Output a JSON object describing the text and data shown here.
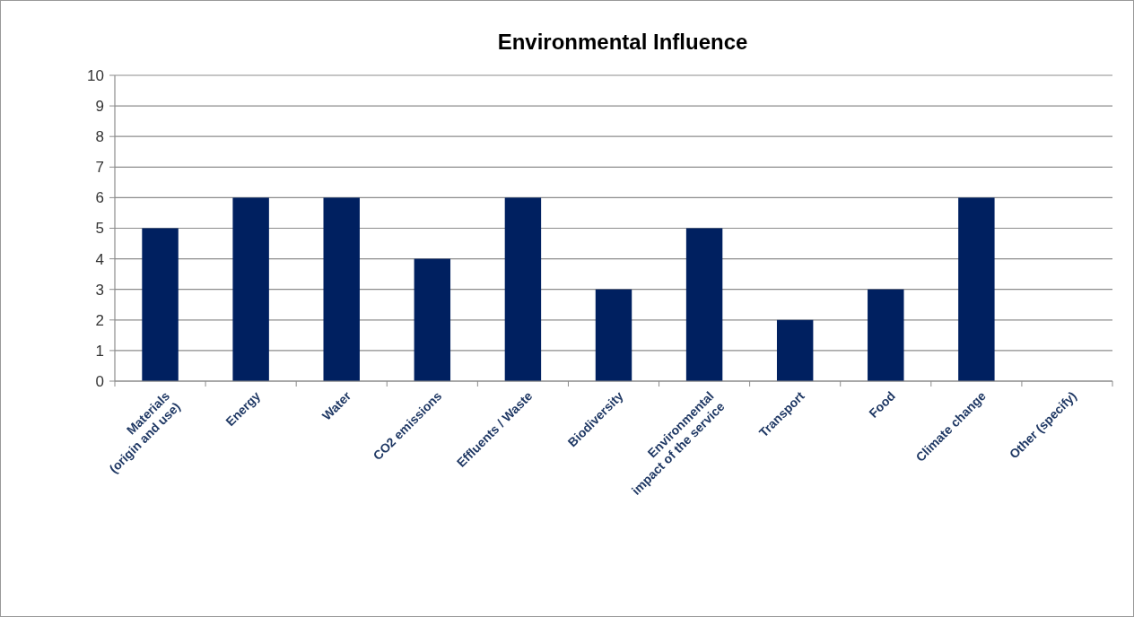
{
  "chart_data": {
    "type": "bar",
    "title": "Environmental Influence",
    "categories": [
      "Materials\n(origin and use)",
      "Energy",
      "Water",
      "CO2 emissions",
      "Effluents / Waste",
      "Biodiversity",
      "Environmental\nimpact of the service",
      "Transport",
      "Food",
      "Climate change",
      "Other (specify)"
    ],
    "values": [
      5,
      6,
      6,
      4,
      6,
      3,
      5,
      2,
      3,
      6,
      0
    ],
    "color": "#002060",
    "ylim": [
      0,
      10
    ],
    "yticks": [
      0,
      1,
      2,
      3,
      4,
      5,
      6,
      7,
      8,
      9,
      10
    ],
    "grid": "y"
  }
}
